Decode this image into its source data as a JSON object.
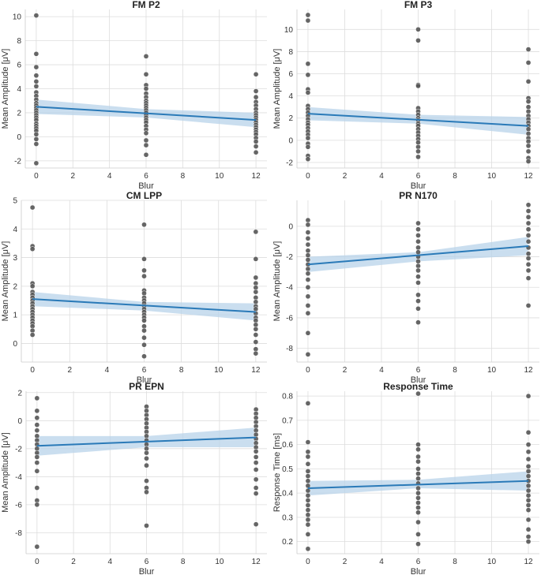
{
  "colors": {
    "point": "#555555",
    "line": "#2a7ab8",
    "band": "#b8d3ea",
    "grid": "#dddddd"
  },
  "chart_data": [
    {
      "type": "scatter",
      "title": "FM P2",
      "xlabel": "Blur",
      "ylabel": "Mean Amplitude [μV]",
      "xlim": [
        -0.6,
        12.6
      ],
      "ylim": [
        -2.6,
        10.6
      ],
      "xticks": [
        0,
        2,
        4,
        6,
        8,
        10,
        12
      ],
      "yticks": [
        -2,
        0,
        2,
        4,
        6,
        8,
        10
      ],
      "points": {
        "0": [
          10.1,
          6.9,
          5.8,
          5.1,
          4.6,
          4.2,
          3.7,
          3.4,
          3.1,
          2.8,
          2.6,
          2.4,
          2.2,
          2.0,
          1.8,
          1.6,
          1.4,
          1.1,
          0.9,
          0.7,
          0.5,
          0.2,
          -0.2,
          -0.6,
          -2.2
        ],
        "6": [
          6.7,
          5.2,
          4.3,
          4.0,
          3.6,
          3.3,
          3.0,
          2.8,
          2.6,
          2.4,
          2.2,
          2.0,
          1.8,
          1.6,
          1.4,
          1.2,
          0.9,
          0.6,
          0.3,
          -0.3,
          -0.7,
          -1.5
        ],
        "12": [
          5.2,
          3.8,
          3.3,
          2.9,
          2.6,
          2.3,
          2.0,
          1.8,
          1.6,
          1.4,
          1.2,
          1.0,
          0.8,
          0.6,
          0.4,
          0.2,
          -0.1,
          -0.4,
          -0.8,
          -1.3
        ]
      },
      "fit": {
        "x": [
          0,
          12
        ],
        "y": [
          2.5,
          1.4
        ]
      },
      "ci": {
        "x": [
          0,
          6,
          12
        ],
        "lower": [
          1.9,
          1.6,
          0.8
        ],
        "upper": [
          3.1,
          2.3,
          2.0
        ]
      }
    },
    {
      "type": "scatter",
      "title": "FM P3",
      "xlabel": "Blur",
      "ylabel": "Mean Amplitude [μV]",
      "xlim": [
        -0.6,
        12.6
      ],
      "ylim": [
        -2.5,
        11.8
      ],
      "xticks": [
        0,
        2,
        4,
        6,
        8,
        10,
        12
      ],
      "yticks": [
        -2,
        0,
        2,
        4,
        6,
        8,
        10
      ],
      "points": {
        "0": [
          11.3,
          10.8,
          6.9,
          5.9,
          4.6,
          4.3,
          3.1,
          2.8,
          2.5,
          2.2,
          1.9,
          1.6,
          1.4,
          1.1,
          0.8,
          0.5,
          0.2,
          -0.3,
          -0.6,
          -1.4,
          -1.7
        ],
        "6": [
          10.0,
          9.0,
          5.0,
          4.9,
          2.9,
          2.6,
          2.3,
          2.0,
          1.8,
          1.5,
          1.3,
          1.0,
          0.7,
          0.4,
          0.1,
          -0.2,
          -0.6,
          -1.0,
          -1.5
        ],
        "12": [
          8.2,
          7.0,
          5.3,
          3.8,
          3.5,
          3.0,
          2.6,
          2.2,
          1.9,
          1.6,
          1.3,
          1.0,
          0.6,
          0.2,
          -0.1,
          -0.5,
          -1.0,
          -1.6,
          -1.9
        ]
      },
      "fit": {
        "x": [
          0,
          12
        ],
        "y": [
          2.4,
          1.3
        ]
      },
      "ci": {
        "x": [
          0,
          6,
          12
        ],
        "lower": [
          1.8,
          1.5,
          0.5
        ],
        "upper": [
          3.0,
          2.3,
          2.1
        ]
      }
    },
    {
      "type": "scatter",
      "title": "CM LPP",
      "xlabel": "Blur",
      "ylabel": "Mean Amplitude [μV]",
      "xlim": [
        -0.6,
        12.6
      ],
      "ylim": [
        -0.65,
        5.0
      ],
      "xticks": [
        0,
        2,
        4,
        6,
        8,
        10,
        12
      ],
      "yticks": [
        0,
        1,
        2,
        3,
        4,
        5
      ],
      "points": {
        "0": [
          4.75,
          3.4,
          3.3,
          2.1,
          2.0,
          1.8,
          1.7,
          1.6,
          1.5,
          1.4,
          1.3,
          1.2,
          1.1,
          1.0,
          0.9,
          0.8,
          0.7,
          0.6,
          0.45,
          0.3
        ],
        "6": [
          4.15,
          2.95,
          2.55,
          2.35,
          1.85,
          1.75,
          1.6,
          1.5,
          1.4,
          1.3,
          1.2,
          1.1,
          1.0,
          0.9,
          0.8,
          0.6,
          0.45,
          0.2,
          -0.05,
          -0.45
        ],
        "12": [
          3.9,
          2.95,
          2.3,
          2.1,
          1.95,
          1.8,
          1.6,
          1.45,
          1.3,
          1.2,
          1.05,
          0.9,
          0.8,
          0.65,
          0.5,
          0.3,
          0.05,
          -0.2,
          -0.35
        ]
      },
      "fit": {
        "x": [
          0,
          12
        ],
        "y": [
          1.55,
          1.1
        ]
      },
      "ci": {
        "x": [
          0,
          6,
          12
        ],
        "lower": [
          1.3,
          1.15,
          0.8
        ],
        "upper": [
          1.8,
          1.45,
          1.4
        ]
      }
    },
    {
      "type": "scatter",
      "title": "PR N170",
      "xlabel": "Blur",
      "ylabel": "Mean Amplitude [μV]",
      "xlim": [
        -0.6,
        12.6
      ],
      "ylim": [
        -8.9,
        1.7
      ],
      "xticks": [
        0,
        2,
        4,
        6,
        8,
        10,
        12
      ],
      "yticks": [
        -8,
        -6,
        -4,
        -2,
        0
      ],
      "points": {
        "0": [
          0.4,
          0.1,
          -0.4,
          -0.8,
          -1.2,
          -1.6,
          -1.9,
          -2.2,
          -2.5,
          -2.8,
          -3.1,
          -3.5,
          -4.0,
          -4.6,
          -5.2,
          -5.7,
          -7.0,
          -8.4
        ],
        "6": [
          0.2,
          -0.2,
          -0.6,
          -1.0,
          -1.4,
          -1.7,
          -2.0,
          -2.3,
          -2.6,
          -2.9,
          -3.3,
          -3.7,
          -4.5,
          -4.9,
          -5.4,
          -6.3
        ],
        "12": [
          1.4,
          1.0,
          0.6,
          0.2,
          -0.2,
          -0.6,
          -1.0,
          -1.4,
          -1.8,
          -2.1,
          -2.5,
          -2.9,
          -3.4,
          -5.2
        ]
      },
      "fit": {
        "x": [
          0,
          12
        ],
        "y": [
          -2.5,
          -1.3
        ]
      },
      "ci": {
        "x": [
          0,
          6,
          12
        ],
        "lower": [
          -3.0,
          -2.3,
          -1.9
        ],
        "upper": [
          -2.0,
          -1.7,
          -0.7
        ]
      }
    },
    {
      "type": "scatter",
      "title": "PR EPN",
      "xlabel": "Blur",
      "ylabel": "Mean Amplitude [μV]",
      "xlim": [
        -0.6,
        12.6
      ],
      "ylim": [
        -9.5,
        2.1
      ],
      "xticks": [
        0,
        2,
        4,
        6,
        8,
        10,
        12
      ],
      "yticks": [
        -8,
        -6,
        -4,
        -2,
        0,
        2
      ],
      "points": {
        "0": [
          1.6,
          0.7,
          0.2,
          -0.3,
          -0.7,
          -1.1,
          -1.4,
          -1.7,
          -2.0,
          -2.3,
          -2.6,
          -3.0,
          -3.6,
          -4.8,
          -5.7,
          -6.0,
          -9.0
        ],
        "6": [
          1.0,
          0.7,
          0.4,
          0.1,
          -0.2,
          -0.5,
          -0.8,
          -1.1,
          -1.4,
          -1.7,
          -2.0,
          -2.3,
          -2.7,
          -3.2,
          -4.3,
          -4.8,
          -5.1,
          -7.5
        ],
        "12": [
          0.8,
          0.5,
          0.2,
          -0.1,
          -0.4,
          -0.7,
          -1.0,
          -1.3,
          -1.6,
          -1.9,
          -2.2,
          -2.6,
          -3.0,
          -3.5,
          -4.2,
          -4.8,
          -5.2,
          -7.4
        ]
      },
      "fit": {
        "x": [
          0,
          12
        ],
        "y": [
          -1.8,
          -1.2
        ]
      },
      "ci": {
        "x": [
          0,
          6,
          12
        ],
        "lower": [
          -2.5,
          -1.9,
          -1.9
        ],
        "upper": [
          -1.1,
          -1.1,
          -0.5
        ]
      }
    },
    {
      "type": "scatter",
      "title": "Response Time",
      "xlabel": "Blur",
      "ylabel": "Response Time [ms]",
      "xlim": [
        -0.6,
        12.6
      ],
      "ylim": [
        0.15,
        0.82
      ],
      "xticks": [
        0,
        2,
        4,
        6,
        8,
        10,
        12
      ],
      "yticks": [
        0.2,
        0.3,
        0.4,
        0.5,
        0.6,
        0.7,
        0.8
      ],
      "points": {
        "0": [
          0.77,
          0.61,
          0.57,
          0.55,
          0.52,
          0.49,
          0.47,
          0.45,
          0.43,
          0.41,
          0.39,
          0.37,
          0.35,
          0.33,
          0.31,
          0.29,
          0.27,
          0.23,
          0.17
        ],
        "6": [
          0.81,
          0.6,
          0.58,
          0.55,
          0.53,
          0.5,
          0.48,
          0.46,
          0.44,
          0.42,
          0.4,
          0.38,
          0.36,
          0.34,
          0.32,
          0.28,
          0.23,
          0.19
        ],
        "12": [
          0.8,
          0.65,
          0.6,
          0.57,
          0.54,
          0.51,
          0.49,
          0.47,
          0.45,
          0.43,
          0.41,
          0.39,
          0.37,
          0.35,
          0.33,
          0.29,
          0.25,
          0.22,
          0.2
        ]
      },
      "fit": {
        "x": [
          0,
          12
        ],
        "y": [
          0.42,
          0.45
        ]
      },
      "ci": {
        "x": [
          0,
          6,
          12
        ],
        "lower": [
          0.39,
          0.42,
          0.41
        ],
        "upper": [
          0.45,
          0.455,
          0.49
        ]
      }
    }
  ]
}
